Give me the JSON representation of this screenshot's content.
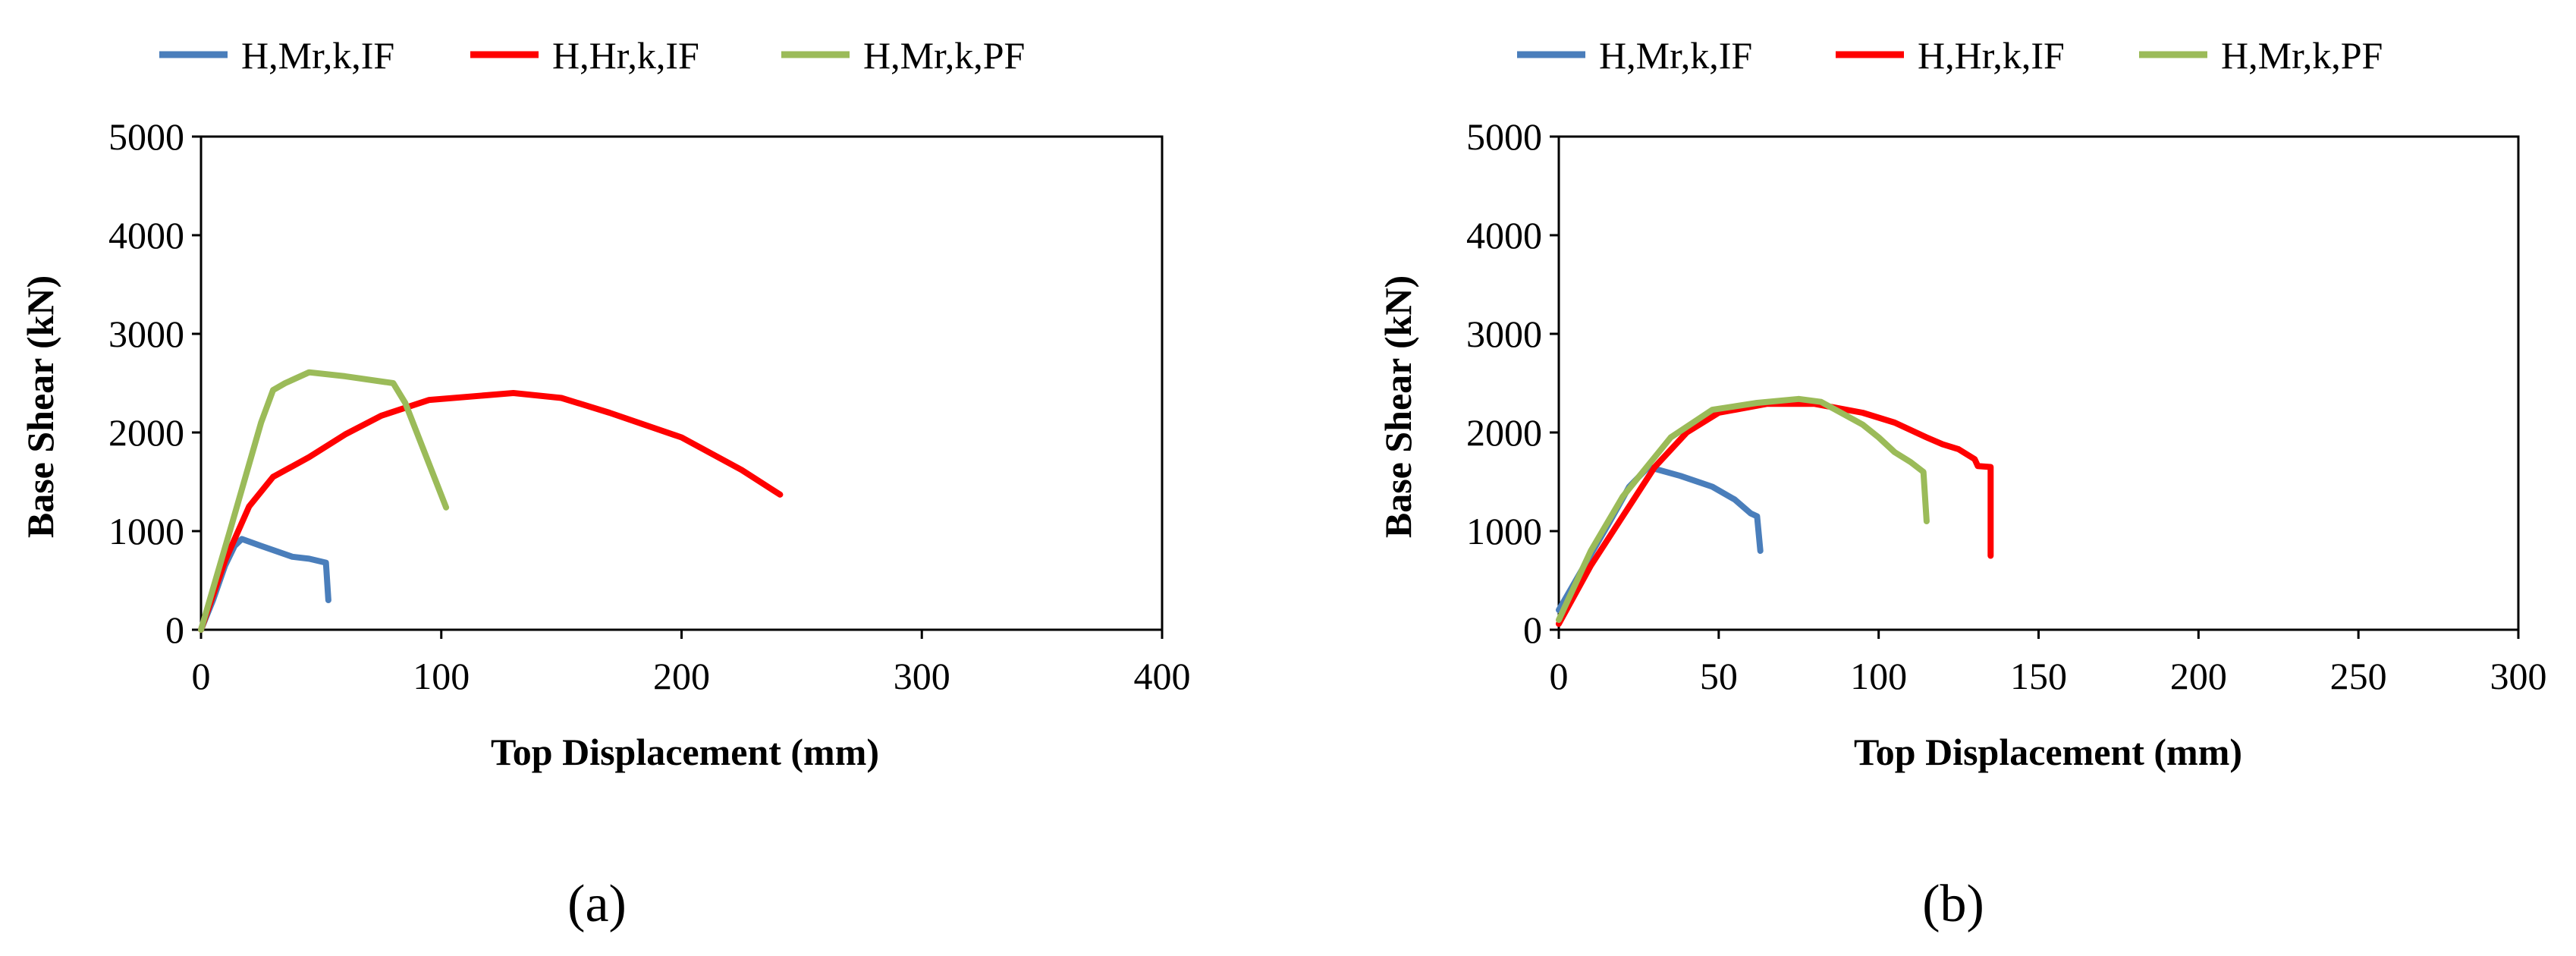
{
  "chart_data": [
    {
      "panel": "(a)",
      "type": "line",
      "xlabel": "Top Displacement (mm)",
      "ylabel": "Base Shear (kN)",
      "xlim": [
        0,
        400
      ],
      "ylim": [
        0,
        5000
      ],
      "xticks": [
        0,
        100,
        200,
        300,
        400
      ],
      "yticks": [
        0,
        1000,
        2000,
        3000,
        4000,
        5000
      ],
      "grid": false,
      "legend_position": "top",
      "series": [
        {
          "name": "H,Mr,k,IF",
          "color": "#4a7ebb",
          "points": [
            [
              0,
              0
            ],
            [
              5,
              300
            ],
            [
              10,
              650
            ],
            [
              14,
              850
            ],
            [
              17,
              920
            ],
            [
              25,
              850
            ],
            [
              38,
              740
            ],
            [
              45,
              720
            ],
            [
              52,
              680
            ],
            [
              53,
              300
            ]
          ]
        },
        {
          "name": "H,Hr,k,IF",
          "color": "#ff0000",
          "points": [
            [
              0,
              0
            ],
            [
              10,
              700
            ],
            [
              20,
              1250
            ],
            [
              30,
              1550
            ],
            [
              45,
              1750
            ],
            [
              60,
              1980
            ],
            [
              75,
              2170
            ],
            [
              95,
              2330
            ],
            [
              130,
              2400
            ],
            [
              150,
              2350
            ],
            [
              170,
              2200
            ],
            [
              200,
              1950
            ],
            [
              225,
              1620
            ],
            [
              241,
              1370
            ]
          ]
        },
        {
          "name": "H,Mr,k,PF",
          "color": "#9bbb59",
          "points": [
            [
              0,
              0
            ],
            [
              12,
              1000
            ],
            [
              25,
              2100
            ],
            [
              30,
              2430
            ],
            [
              35,
              2500
            ],
            [
              45,
              2610
            ],
            [
              60,
              2570
            ],
            [
              80,
              2500
            ],
            [
              85,
              2300
            ],
            [
              102,
              1240
            ]
          ]
        }
      ]
    },
    {
      "panel": "(b)",
      "type": "line",
      "xlabel": "Top Displacement (mm)",
      "ylabel": "Base Shear (kN)",
      "xlim": [
        0,
        300
      ],
      "ylim": [
        0,
        5000
      ],
      "xticks": [
        0,
        50,
        100,
        150,
        200,
        250,
        300
      ],
      "yticks": [
        0,
        1000,
        2000,
        3000,
        4000,
        5000
      ],
      "grid": false,
      "legend_position": "top",
      "series": [
        {
          "name": "H,Mr,k,IF",
          "color": "#4a7ebb",
          "points": [
            [
              0,
              200
            ],
            [
              8,
              650
            ],
            [
              16,
              1100
            ],
            [
              22,
              1450
            ],
            [
              28,
              1650
            ],
            [
              38,
              1560
            ],
            [
              48,
              1450
            ],
            [
              55,
              1320
            ],
            [
              60,
              1180
            ],
            [
              62,
              1150
            ],
            [
              63,
              800
            ]
          ]
        },
        {
          "name": "H,Hr,k,IF",
          "color": "#ff0000",
          "points": [
            [
              0,
              60
            ],
            [
              10,
              650
            ],
            [
              20,
              1150
            ],
            [
              30,
              1650
            ],
            [
              40,
              2000
            ],
            [
              50,
              2200
            ],
            [
              65,
              2290
            ],
            [
              80,
              2290
            ],
            [
              95,
              2200
            ],
            [
              105,
              2100
            ],
            [
              115,
              1950
            ],
            [
              120,
              1880
            ],
            [
              125,
              1830
            ],
            [
              130,
              1730
            ],
            [
              131,
              1660
            ],
            [
              135,
              1650
            ],
            [
              135,
              750
            ]
          ]
        },
        {
          "name": "H,Mr,k,PF",
          "color": "#9bbb59",
          "points": [
            [
              0,
              100
            ],
            [
              10,
              800
            ],
            [
              20,
              1350
            ],
            [
              35,
              1950
            ],
            [
              48,
              2230
            ],
            [
              62,
              2300
            ],
            [
              75,
              2340
            ],
            [
              82,
              2310
            ],
            [
              95,
              2080
            ],
            [
              100,
              1950
            ],
            [
              105,
              1800
            ],
            [
              110,
              1700
            ],
            [
              114,
              1600
            ],
            [
              115,
              1100
            ]
          ]
        }
      ]
    }
  ]
}
